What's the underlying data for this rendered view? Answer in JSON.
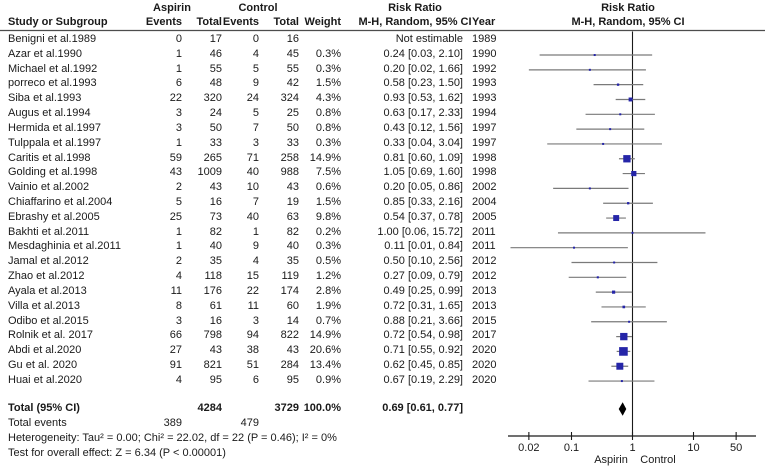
{
  "header": {
    "study_col": "Study or Subgroup",
    "aspirin_group": "Aspirin",
    "control_group": "Control",
    "risk_ratio_group": "Risk Ratio",
    "risk_ratio_group_plot": "Risk Ratio",
    "events_col_aspirin": "Events",
    "total_col_aspirin": "Total",
    "events_col_control": "Events",
    "total_col_control": "Total",
    "weight_col": "Weight",
    "mh_ci_col": "M-H, Random, 95% CI",
    "year_col": "Year",
    "mh_ci_col_plot": "M-H, Random, 95% CI"
  },
  "chart_data": {
    "type": "forest",
    "effect_measure": "Risk Ratio",
    "method": "M-H, Random, 95% CI",
    "x_scale": "log",
    "x_ticks": [
      0.02,
      0.1,
      1,
      10,
      50
    ],
    "axis_label_left": "Aspirin",
    "axis_label_right": "Control",
    "studies": [
      {
        "name": "Benigni et al.1989",
        "aspirin_events": "0",
        "aspirin_total": "17",
        "control_events": "0",
        "control_total": "16",
        "weight": "",
        "rr_text": "Not estimable",
        "year": "1989",
        "rr": null,
        "ci_low": null,
        "ci_high": null,
        "weight_pct": null
      },
      {
        "name": "Azar et al.1990",
        "aspirin_events": "1",
        "aspirin_total": "46",
        "control_events": "4",
        "control_total": "45",
        "weight": "0.3%",
        "rr_text": "0.24 [0.03, 2.10]",
        "year": "1990",
        "rr": 0.24,
        "ci_low": 0.03,
        "ci_high": 2.1,
        "weight_pct": 0.3
      },
      {
        "name": "Michael et al.1992",
        "aspirin_events": "1",
        "aspirin_total": "55",
        "control_events": "5",
        "control_total": "55",
        "weight": "0.3%",
        "rr_text": "0.20 [0.02, 1.66]",
        "year": "1992",
        "rr": 0.2,
        "ci_low": 0.02,
        "ci_high": 1.66,
        "weight_pct": 0.3
      },
      {
        "name": "porreco et al.1993",
        "aspirin_events": "6",
        "aspirin_total": "48",
        "control_events": "9",
        "control_total": "42",
        "weight": "1.5%",
        "rr_text": "0.58 [0.23, 1.50]",
        "year": "1993",
        "rr": 0.58,
        "ci_low": 0.23,
        "ci_high": 1.5,
        "weight_pct": 1.5
      },
      {
        "name": "Siba et al.1993",
        "aspirin_events": "22",
        "aspirin_total": "320",
        "control_events": "24",
        "control_total": "324",
        "weight": "4.3%",
        "rr_text": "0.93 [0.53, 1.62]",
        "year": "1993",
        "rr": 0.93,
        "ci_low": 0.53,
        "ci_high": 1.62,
        "weight_pct": 4.3
      },
      {
        "name": "Augus et al.1994",
        "aspirin_events": "3",
        "aspirin_total": "24",
        "control_events": "5",
        "control_total": "25",
        "weight": "0.8%",
        "rr_text": "0.63 [0.17, 2.33]",
        "year": "1994",
        "rr": 0.63,
        "ci_low": 0.17,
        "ci_high": 2.33,
        "weight_pct": 0.8
      },
      {
        "name": "Hermida et al.1997",
        "aspirin_events": "3",
        "aspirin_total": "50",
        "control_events": "7",
        "control_total": "50",
        "weight": "0.8%",
        "rr_text": "0.43 [0.12, 1.56]",
        "year": "1997",
        "rr": 0.43,
        "ci_low": 0.12,
        "ci_high": 1.56,
        "weight_pct": 0.8
      },
      {
        "name": "Tulppala et al.1997",
        "aspirin_events": "1",
        "aspirin_total": "33",
        "control_events": "3",
        "control_total": "33",
        "weight": "0.3%",
        "rr_text": "0.33 [0.04, 3.04]",
        "year": "1997",
        "rr": 0.33,
        "ci_low": 0.04,
        "ci_high": 3.04,
        "weight_pct": 0.3
      },
      {
        "name": "Caritis et al.1998",
        "aspirin_events": "59",
        "aspirin_total": "265",
        "control_events": "71",
        "control_total": "258",
        "weight": "14.9%",
        "rr_text": "0.81 [0.60, 1.09]",
        "year": "1998",
        "rr": 0.81,
        "ci_low": 0.6,
        "ci_high": 1.09,
        "weight_pct": 14.9
      },
      {
        "name": "Golding et al.1998",
        "aspirin_events": "43",
        "aspirin_total": "1009",
        "control_events": "40",
        "control_total": "988",
        "weight": "7.5%",
        "rr_text": "1.05 [0.69, 1.60]",
        "year": "1998",
        "rr": 1.05,
        "ci_low": 0.69,
        "ci_high": 1.6,
        "weight_pct": 7.5
      },
      {
        "name": "Vainio et al.2002",
        "aspirin_events": "2",
        "aspirin_total": "43",
        "control_events": "10",
        "control_total": "43",
        "weight": "0.6%",
        "rr_text": "0.20 [0.05, 0.86]",
        "year": "2002",
        "rr": 0.2,
        "ci_low": 0.05,
        "ci_high": 0.86,
        "weight_pct": 0.6
      },
      {
        "name": "Chiaffarino et al.2004",
        "aspirin_events": "5",
        "aspirin_total": "16",
        "control_events": "7",
        "control_total": "19",
        "weight": "1.5%",
        "rr_text": "0.85 [0.33, 2.16]",
        "year": "2004",
        "rr": 0.85,
        "ci_low": 0.33,
        "ci_high": 2.16,
        "weight_pct": 1.5
      },
      {
        "name": "Ebrashy et al.2005",
        "aspirin_events": "25",
        "aspirin_total": "73",
        "control_events": "40",
        "control_total": "63",
        "weight": "9.8%",
        "rr_text": "0.54 [0.37, 0.78]",
        "year": "2005",
        "rr": 0.54,
        "ci_low": 0.37,
        "ci_high": 0.78,
        "weight_pct": 9.8
      },
      {
        "name": "Bakhti et al.2011",
        "aspirin_events": "1",
        "aspirin_total": "82",
        "control_events": "1",
        "control_total": "82",
        "weight": "0.2%",
        "rr_text": "1.00 [0.06, 15.72]",
        "year": "2011",
        "rr": 1.0,
        "ci_low": 0.06,
        "ci_high": 15.72,
        "weight_pct": 0.2
      },
      {
        "name": "Mesdaghinia et al.2011",
        "aspirin_events": "1",
        "aspirin_total": "40",
        "control_events": "9",
        "control_total": "40",
        "weight": "0.3%",
        "rr_text": "0.11 [0.01, 0.84]",
        "year": "2011",
        "rr": 0.11,
        "ci_low": 0.01,
        "ci_high": 0.84,
        "weight_pct": 0.3
      },
      {
        "name": "Jamal et al.2012",
        "aspirin_events": "2",
        "aspirin_total": "35",
        "control_events": "4",
        "control_total": "35",
        "weight": "0.5%",
        "rr_text": "0.50 [0.10, 2.56]",
        "year": "2012",
        "rr": 0.5,
        "ci_low": 0.1,
        "ci_high": 2.56,
        "weight_pct": 0.5
      },
      {
        "name": "Zhao et al.2012",
        "aspirin_events": "4",
        "aspirin_total": "118",
        "control_events": "15",
        "control_total": "119",
        "weight": "1.2%",
        "rr_text": "0.27 [0.09, 0.79]",
        "year": "2012",
        "rr": 0.27,
        "ci_low": 0.09,
        "ci_high": 0.79,
        "weight_pct": 1.2
      },
      {
        "name": "Ayala et al.2013",
        "aspirin_events": "11",
        "aspirin_total": "176",
        "control_events": "22",
        "control_total": "174",
        "weight": "2.8%",
        "rr_text": "0.49 [0.25, 0.99]",
        "year": "2013",
        "rr": 0.49,
        "ci_low": 0.25,
        "ci_high": 0.99,
        "weight_pct": 2.8
      },
      {
        "name": "Villa et al.2013",
        "aspirin_events": "8",
        "aspirin_total": "61",
        "control_events": "11",
        "control_total": "60",
        "weight": "1.9%",
        "rr_text": "0.72 [0.31, 1.65]",
        "year": "2013",
        "rr": 0.72,
        "ci_low": 0.31,
        "ci_high": 1.65,
        "weight_pct": 1.9
      },
      {
        "name": "Odibo et al.2015",
        "aspirin_events": "3",
        "aspirin_total": "16",
        "control_events": "3",
        "control_total": "14",
        "weight": "0.7%",
        "rr_text": "0.88 [0.21, 3.66]",
        "year": "2015",
        "rr": 0.88,
        "ci_low": 0.21,
        "ci_high": 3.66,
        "weight_pct": 0.7
      },
      {
        "name": "Rolnik et al. 2017",
        "aspirin_events": "66",
        "aspirin_total": "798",
        "control_events": "94",
        "control_total": "822",
        "weight": "14.9%",
        "rr_text": "0.72 [0.54, 0.98]",
        "year": "2017",
        "rr": 0.72,
        "ci_low": 0.54,
        "ci_high": 0.98,
        "weight_pct": 14.9
      },
      {
        "name": "Abdi et al.2020",
        "aspirin_events": "27",
        "aspirin_total": "43",
        "control_events": "38",
        "control_total": "43",
        "weight": "20.6%",
        "rr_text": "0.71 [0.55, 0.92]",
        "year": "2020",
        "rr": 0.71,
        "ci_low": 0.55,
        "ci_high": 0.92,
        "weight_pct": 20.6
      },
      {
        "name": "Gu et al. 2020",
        "aspirin_events": "91",
        "aspirin_total": "821",
        "control_events": "51",
        "control_total": "284",
        "weight": "13.4%",
        "rr_text": "0.62 [0.45, 0.85]",
        "year": "2020",
        "rr": 0.62,
        "ci_low": 0.45,
        "ci_high": 0.85,
        "weight_pct": 13.4
      },
      {
        "name": "Huai et al.2020",
        "aspirin_events": "4",
        "aspirin_total": "95",
        "control_events": "6",
        "control_total": "95",
        "weight": "0.9%",
        "rr_text": "0.67 [0.19, 2.29]",
        "year": "2020",
        "rr": 0.67,
        "ci_low": 0.19,
        "ci_high": 2.29,
        "weight_pct": 0.9
      }
    ],
    "total_row": {
      "label": "Total (95% CI)",
      "aspirin_total": "4284",
      "control_total": "3729",
      "weight": "100.0%",
      "rr_text": "0.69 [0.61, 0.77]",
      "rr": 0.69,
      "ci_low": 0.61,
      "ci_high": 0.77
    },
    "total_events": {
      "label": "Total events",
      "aspirin": "389",
      "control": "479"
    },
    "heterogeneity": "Heterogeneity: Tau² = 0.00; Chi² = 22.02, df = 22 (P = 0.46); I² = 0%",
    "overall_effect": "Test for overall effect: Z = 6.34 (P < 0.00001)"
  },
  "colors": {
    "marker": "#2525a8",
    "ci_line": "#7a7a7a",
    "diamond": "#000000",
    "axis": "#1a1a1a",
    "header_rule": "#4d4d4d"
  }
}
